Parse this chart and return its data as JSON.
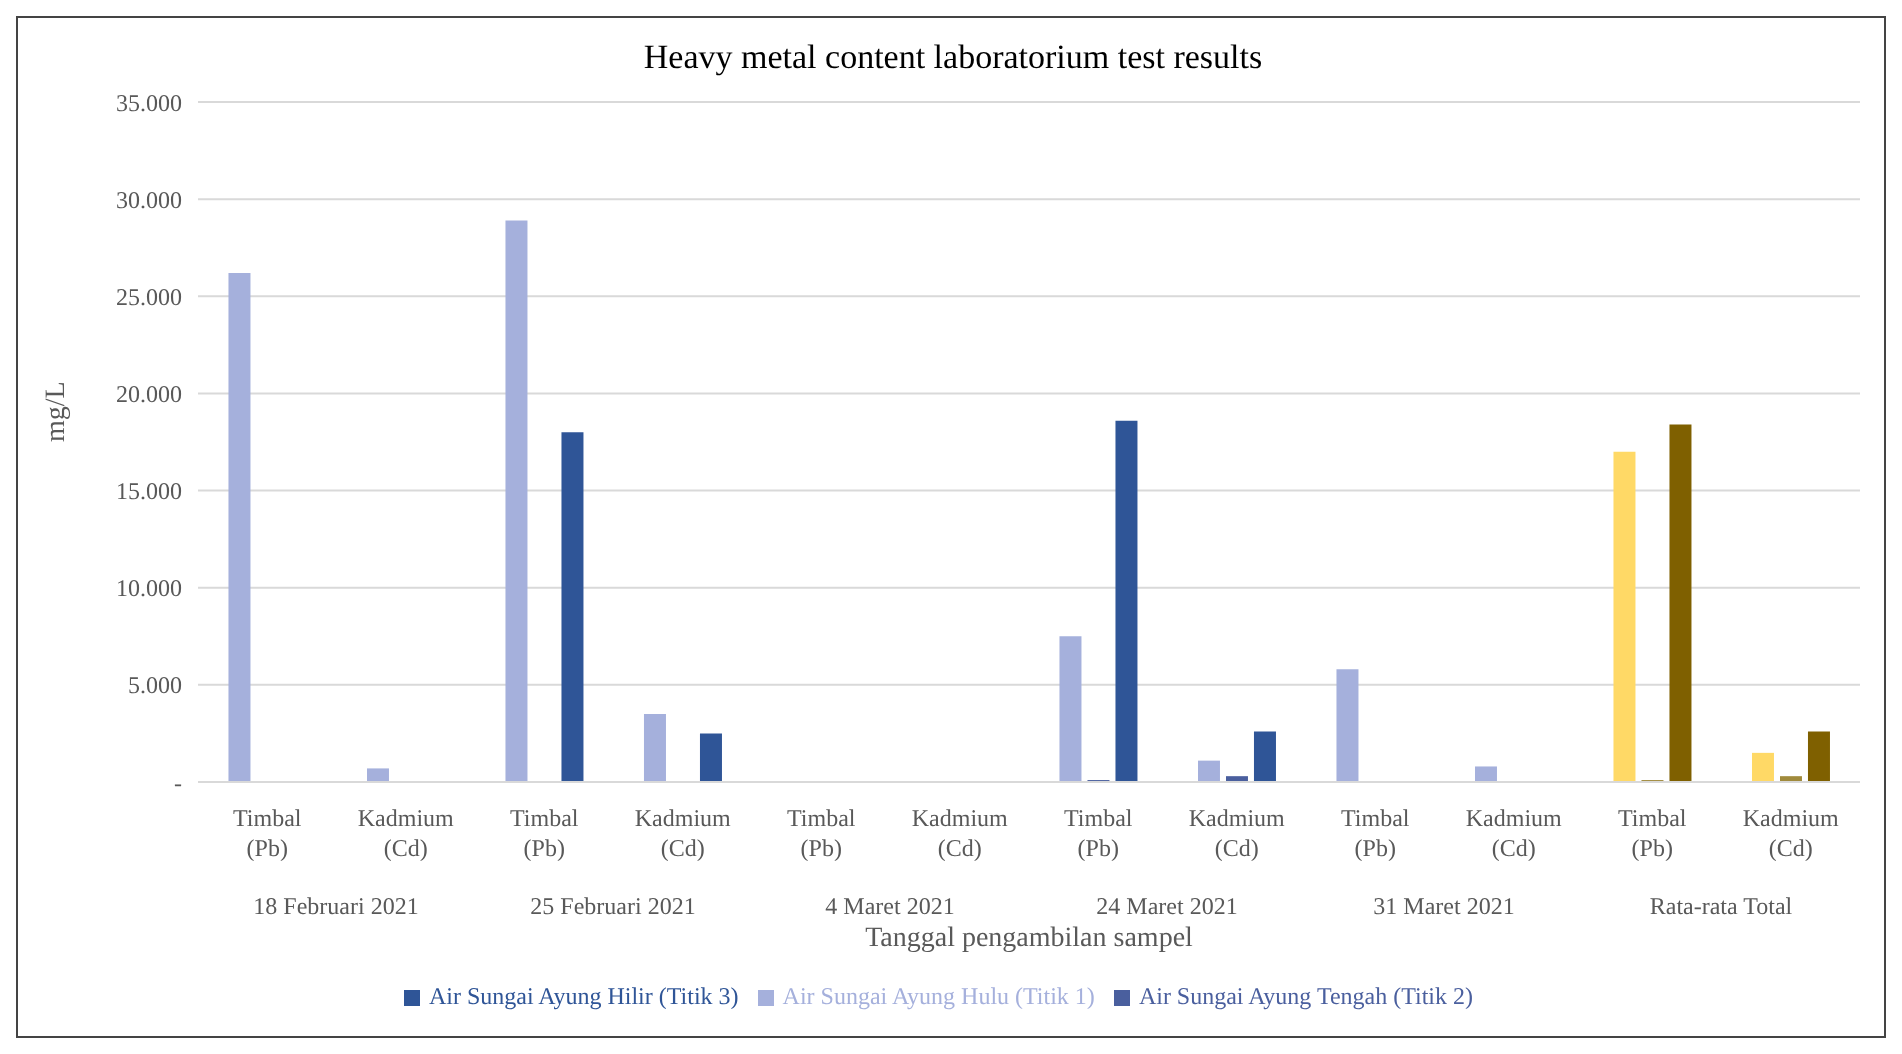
{
  "chart_data": {
    "type": "bar",
    "title": "Heavy metal content laboratorium test results",
    "xlabel": "Tanggal pengambilan sampel",
    "ylabel": "mg/L",
    "categories": [
      "Timbal (Pb)",
      "Kadmium (Cd)",
      "Timbal (Pb)",
      "Kadmium (Cd)",
      "Timbal (Pb)",
      "Kadmium (Cd)",
      "Timbal (Pb)",
      "Kadmium (Cd)",
      "Timbal (Pb)",
      "Kadmium (Cd)",
      "Timbal (Pb)",
      "Kadmium (Cd)"
    ],
    "series": [
      {
        "name": "Air Sungai Ayung Hulu (Titik 1)",
        "color": "#a5b0dc",
        "values": [
          26200,
          700,
          28900,
          3500,
          0,
          0,
          7500,
          1100,
          5800,
          800,
          17000,
          1500
        ],
        "colors": [
          "#a5b0dc",
          "#a5b0dc",
          "#a5b0dc",
          "#a5b0dc",
          "#a5b0dc",
          "#a5b0dc",
          "#a5b0dc",
          "#a5b0dc",
          "#a5b0dc",
          "#a5b0dc",
          "#ffd966",
          "#ffd966"
        ]
      },
      {
        "name": "Air Sungai Ayung Tengah (Titik 2)",
        "color": "#4a5f9e",
        "values": [
          0,
          0,
          0,
          0,
          0,
          0,
          100,
          300,
          0,
          0,
          100,
          300
        ],
        "colors": [
          "#4a5f9e",
          "#4a5f9e",
          "#4a5f9e",
          "#4a5f9e",
          "#4a5f9e",
          "#4a5f9e",
          "#4a5f9e",
          "#4a5f9e",
          "#4a5f9e",
          "#4a5f9e",
          "#a08a3c",
          "#a08a3c"
        ]
      },
      {
        "name": "Air Sungai Ayung Hilir (Titik 3)",
        "color": "#2f5597",
        "values": [
          0,
          0,
          18000,
          2500,
          0,
          0,
          18600,
          2600,
          0,
          0,
          18400,
          2600
        ],
        "colors": [
          "#2f5597",
          "#2f5597",
          "#2f5597",
          "#2f5597",
          "#2f5597",
          "#2f5597",
          "#2f5597",
          "#2f5597",
          "#2f5597",
          "#2f5597",
          "#7f6000",
          "#7f6000"
        ]
      }
    ],
    "ylim": [
      0,
      35000
    ],
    "yticks": [
      {
        "value": 0,
        "label": "-"
      },
      {
        "value": 5000,
        "label": "5.000"
      },
      {
        "value": 10000,
        "label": "10.000"
      },
      {
        "value": 15000,
        "label": "15.000"
      },
      {
        "value": 20000,
        "label": "20.000"
      },
      {
        "value": 25000,
        "label": "25.000"
      },
      {
        "value": 30000,
        "label": "30.000"
      },
      {
        "value": 35000,
        "label": "35.000"
      }
    ],
    "annotations": [
      "18 Februari 2021",
      "25 Februari 2021",
      "4 Maret 2021",
      "24 Maret 2021",
      "31 Maret 2021",
      "Rata-rata Total"
    ],
    "grid": "y",
    "legend": "bottom"
  }
}
